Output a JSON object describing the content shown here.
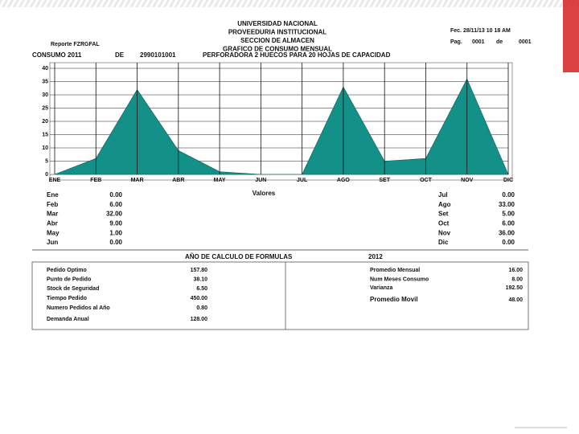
{
  "header": {
    "lines": [
      "UNIVERSIDAD NACIONAL",
      "PROVEEDURIA INSTITUCIONAL",
      "SECCION DE ALMACEN",
      "GRAFICO DE CONSUMO MENSUAL"
    ],
    "report": "Reporte FZRGFAL",
    "date": "Fec. 28/11/13 10 18 AM",
    "page_label": "Pag.",
    "page": "0001",
    "of": "de",
    "pages": "0001"
  },
  "subtitle": {
    "label": "CONSUMO 2011",
    "de": "DE",
    "code": "2990101001",
    "description": "PERFORADORA 2 HUECOS PARA 20 HOJAS DE CAPACIDAD"
  },
  "chart_data": {
    "type": "area",
    "categories": [
      "ENE",
      "FEB",
      "MAR",
      "ABR",
      "MAY",
      "JUN",
      "JUL",
      "AGO",
      "SET",
      "OCT",
      "NOV",
      "DIC"
    ],
    "values": [
      0,
      6,
      32,
      9,
      1,
      0,
      0,
      33,
      5,
      6,
      36,
      0
    ],
    "color": "#139088",
    "ylim": [
      0,
      40
    ],
    "yticks": [
      0,
      5,
      10,
      15,
      20,
      25,
      30,
      35,
      40
    ],
    "grid": true,
    "xlabel": "Valores"
  },
  "monthly": {
    "left": [
      [
        "Ene",
        "0.00"
      ],
      [
        "Feb",
        "6.00"
      ],
      [
        "Mar",
        "32.00"
      ],
      [
        "Abr",
        "9.00"
      ],
      [
        "May",
        "1.00"
      ],
      [
        "Jun",
        "0.00"
      ]
    ],
    "right": [
      [
        "Jul",
        "0.00"
      ],
      [
        "Ago",
        "33.00"
      ],
      [
        "Set",
        "5.00"
      ],
      [
        "Oct",
        "6.00"
      ],
      [
        "Nov",
        "36.00"
      ],
      [
        "Dic",
        "0.00"
      ]
    ]
  },
  "formulas": {
    "title": "AÑO DE CALCULO DE FORMULAS",
    "year": "2012",
    "left": [
      [
        "Pedido Optimo",
        "157.80"
      ],
      [
        "Punto de Pedido",
        "38.10"
      ],
      [
        "Stock de Seguridad",
        "6.50"
      ],
      [
        "Tiempo Pedido",
        "450.00"
      ],
      [
        "Numero Pedidos al Año",
        "0.80"
      ],
      [
        "Demanda Anual",
        "128.00"
      ]
    ],
    "right": [
      [
        "Promedio Mensual",
        "16.00"
      ],
      [
        "Num Meses Consumo",
        "8.00"
      ],
      [
        "Varianza",
        "192.50"
      ],
      [
        "Promedio Movil",
        "48.00"
      ]
    ]
  }
}
